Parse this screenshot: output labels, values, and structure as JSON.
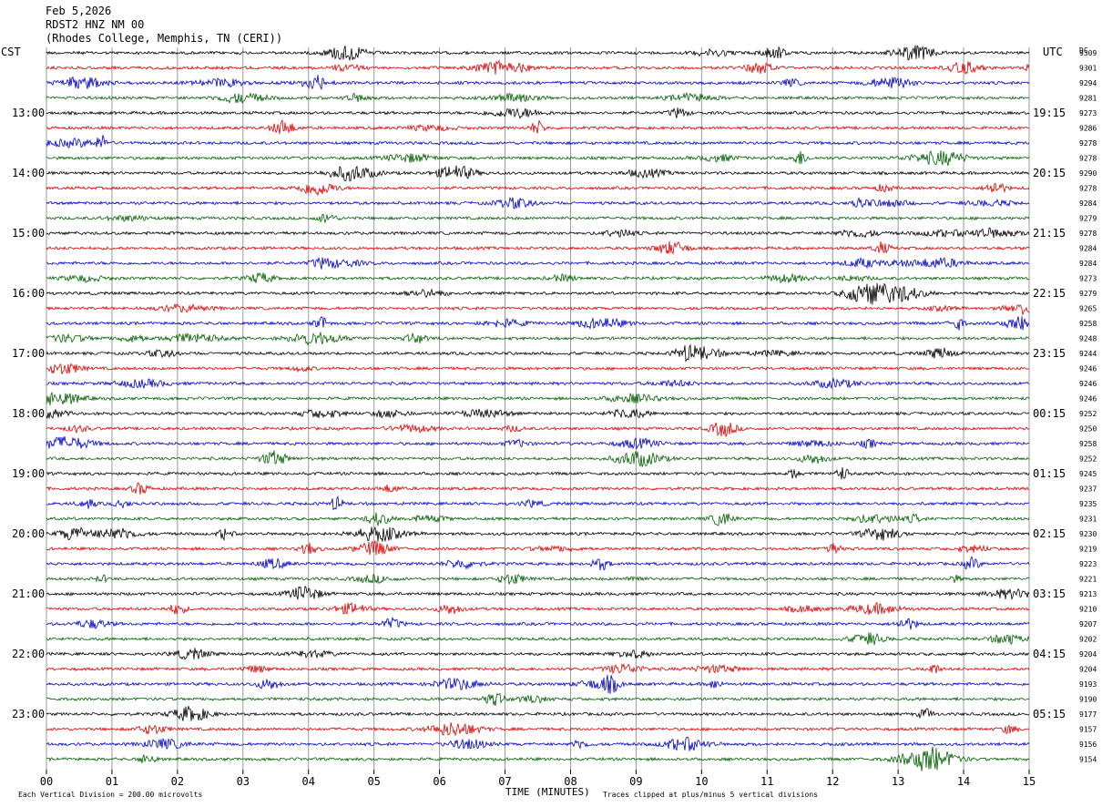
{
  "header": {
    "date": "Feb 5,2026",
    "station": "RDST2 HNZ NM 00",
    "location": "(Rhodes College, Memphis, TN (CERI))"
  },
  "left_zone_label": "CST",
  "right_zone_label": "UTC",
  "dc_label": "DC",
  "footer": {
    "scale_text": "Each Vertical Division =  200.00 microvolts",
    "xaxis_title": "TIME (MINUTES)",
    "clip_text": "Traces clipped at plus/minus 5 vertical divisions"
  },
  "chart_data": {
    "type": "line",
    "xlabel": "TIME (MINUTES)",
    "xlim": [
      0,
      15
    ],
    "x_tick_labels": [
      "00",
      "01",
      "02",
      "03",
      "04",
      "05",
      "06",
      "07",
      "08",
      "09",
      "10",
      "11",
      "12",
      "13",
      "14",
      "15"
    ],
    "left_hour_labels": [
      "13:00",
      "14:00",
      "15:00",
      "16:00",
      "17:00",
      "18:00",
      "19:00",
      "20:00",
      "21:00",
      "22:00",
      "23:00"
    ],
    "right_hour_labels": [
      "19:15",
      "20:15",
      "21:15",
      "22:15",
      "23:15",
      "00:15",
      "01:15",
      "02:15",
      "03:15",
      "04:15",
      "05:15"
    ],
    "trace_colors": [
      "#000000",
      "#e00000",
      "#0000d0",
      "#006000"
    ],
    "dc_offsets": [
      9309,
      9301,
      9294,
      9281,
      9273,
      9286,
      9278,
      9278,
      9290,
      9278,
      9284,
      9279,
      9278,
      9284,
      9284,
      9273,
      9279,
      9265,
      9258,
      9248,
      9244,
      9246,
      9246,
      9246,
      9252,
      9250,
      9258,
      9252,
      9245,
      9237,
      9235,
      9231,
      9230,
      9219,
      9223,
      9221,
      9213,
      9210,
      9207,
      9202,
      9204,
      9204,
      9193,
      9190,
      9177,
      9157,
      9156,
      9154
    ],
    "traces_count": 48,
    "minutes_per_trace": 15,
    "clip_divisions": 5,
    "units": "microvolts",
    "division_value": 200
  }
}
